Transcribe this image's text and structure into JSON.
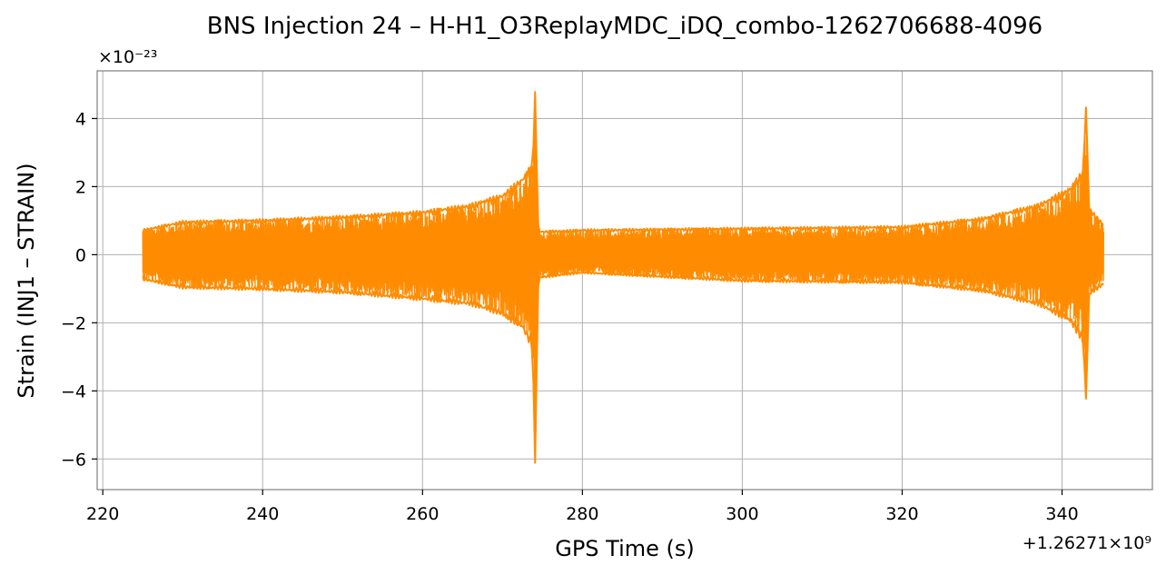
{
  "chart_data": {
    "type": "line",
    "title": "BNS Injection 24 – H-H1_O3ReplayMDC_iDQ_combo-1262706688-4096",
    "xlabel": "GPS Time (s)",
    "ylabel": "Strain (INJ1 – STRAIN)",
    "x_offset_label": "+1.26271×10⁹",
    "y_scale_label": "×10⁻²³",
    "x_offset": 1262710000,
    "y_scale": 1e-23,
    "xlim": [
      219.3,
      351.3
    ],
    "ylim": [
      -6.9,
      5.4
    ],
    "x_ticks": [
      220,
      240,
      260,
      280,
      300,
      320,
      340
    ],
    "y_ticks": [
      -6,
      -4,
      -2,
      0,
      2,
      4
    ],
    "grid": true,
    "legend": "none",
    "series": [
      {
        "color": "#ff8c00",
        "x_range": [
          225,
          345.2
        ],
        "envelope": [
          {
            "x": 225.0,
            "max": 0.75,
            "min": -0.75
          },
          {
            "x": 230.0,
            "max": 1.0,
            "min": -1.0
          },
          {
            "x": 240.0,
            "max": 1.05,
            "min": -1.05
          },
          {
            "x": 250.0,
            "max": 1.15,
            "min": -1.15
          },
          {
            "x": 260.0,
            "max": 1.3,
            "min": -1.35
          },
          {
            "x": 266.0,
            "max": 1.5,
            "min": -1.5
          },
          {
            "x": 270.0,
            "max": 1.8,
            "min": -1.8
          },
          {
            "x": 272.5,
            "max": 2.3,
            "min": -2.2
          },
          {
            "x": 273.7,
            "max": 2.7,
            "min": -2.8
          },
          {
            "x": 274.1,
            "max": 4.9,
            "min": -6.3
          },
          {
            "x": 274.5,
            "max": 0.7,
            "min": -0.7
          },
          {
            "x": 280.0,
            "max": 0.75,
            "min": -0.55
          },
          {
            "x": 300.0,
            "max": 0.8,
            "min": -0.8
          },
          {
            "x": 320.0,
            "max": 0.85,
            "min": -0.85
          },
          {
            "x": 330.0,
            "max": 1.1,
            "min": -1.1
          },
          {
            "x": 337.0,
            "max": 1.5,
            "min": -1.5
          },
          {
            "x": 341.0,
            "max": 2.0,
            "min": -2.0
          },
          {
            "x": 342.6,
            "max": 2.5,
            "min": -2.6
          },
          {
            "x": 343.0,
            "max": 4.5,
            "min": -4.4
          },
          {
            "x": 343.4,
            "max": 1.4,
            "min": -1.2
          },
          {
            "x": 345.2,
            "max": 0.9,
            "min": -0.9
          }
        ]
      }
    ]
  }
}
